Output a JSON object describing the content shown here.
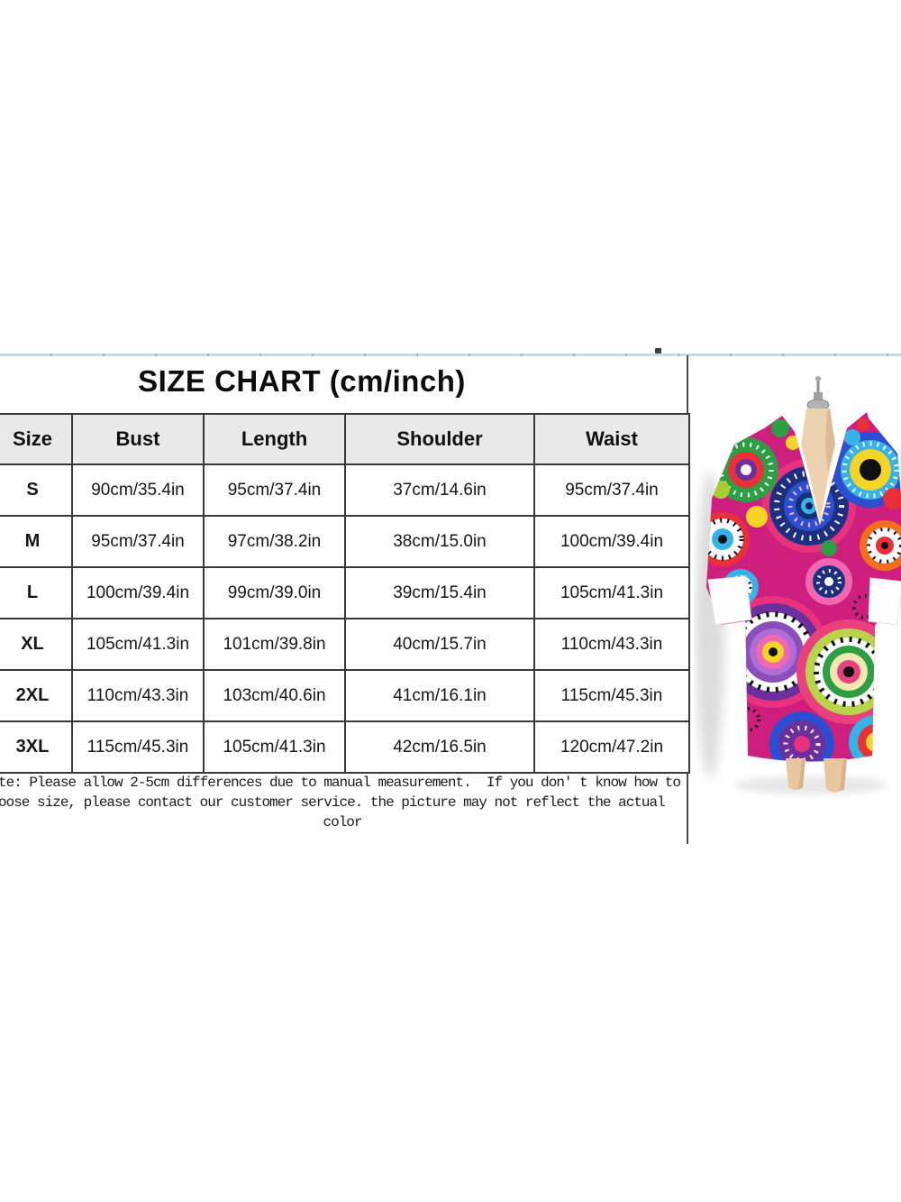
{
  "title": "SIZE CHART (cm/inch)",
  "chart_data": {
    "type": "table",
    "title": "SIZE CHART (cm/inch)",
    "columns": [
      "Size",
      "Bust",
      "Length",
      "Shoulder",
      "Waist"
    ],
    "rows": [
      [
        "S",
        "90cm/35.4in",
        "95cm/37.4in",
        "37cm/14.6in",
        "95cm/37.4in"
      ],
      [
        "M",
        "95cm/37.4in",
        "97cm/38.2in",
        "38cm/15.0in",
        "100cm/39.4in"
      ],
      [
        "L",
        "100cm/39.4in",
        "99cm/39.0in",
        "39cm/15.4in",
        "105cm/41.3in"
      ],
      [
        "XL",
        "105cm/41.3in",
        "101cm/39.8in",
        "40cm/15.7in",
        "110cm/43.3in"
      ],
      [
        "2XL",
        "110cm/43.3in",
        "103cm/40.6in",
        "41cm/16.1in",
        "115cm/45.3in"
      ],
      [
        "3XL",
        "115cm/45.3in",
        "105cm/41.3in",
        "42cm/16.5in",
        "120cm/47.2in"
      ]
    ]
  },
  "note": {
    "line1": "te: Please allow 2-5cm differences due to manual measurement.  If you don' t know how to",
    "line2": "oose size, please contact our customer service. the picture may not reflect the actual",
    "line3": "color"
  },
  "product_image": {
    "description": "multicolor circle-print coat on a tan mannequin with white cuffs",
    "palette": [
      "#cf1f7e",
      "#1d2f80",
      "#2b4fd0",
      "#35b3e8",
      "#e93038",
      "#f07020",
      "#f5d327",
      "#2e9e44",
      "#aacc33",
      "#6b2f9e",
      "#f268b0",
      "#111111",
      "#ffffff"
    ],
    "mannequin_color": "#ecd2b0",
    "header_bg": "#e9e9e9",
    "border_color": "#383838"
  }
}
